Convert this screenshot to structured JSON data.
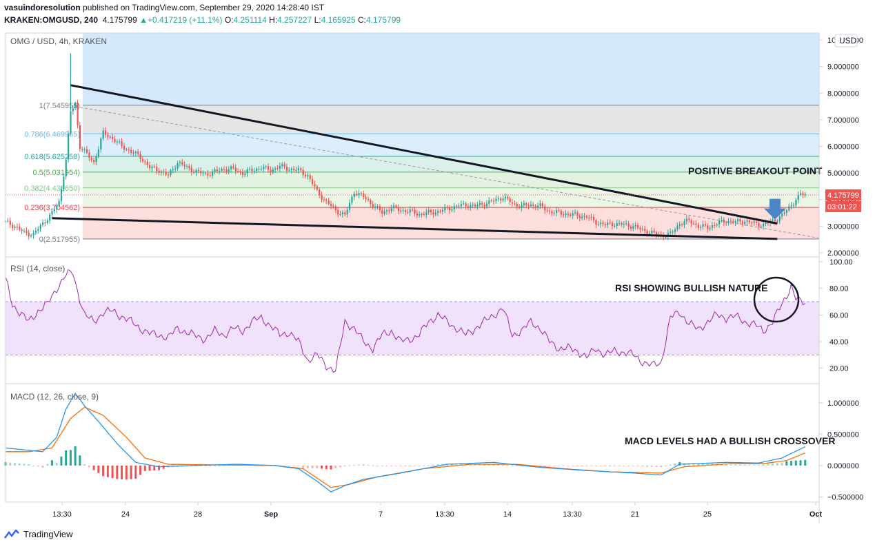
{
  "header": {
    "author": "vasuindoresolution",
    "published_text": "published on TradingView.com, September 29, 2020 14:28:40 IST",
    "symbol": "KRAKEN:OMGUSD, 240",
    "last": "4.175799",
    "change": "+0.417219 (+11.1%)",
    "open_label": "O:",
    "open": "4.251114",
    "high_label": "H:",
    "high": "4.257227",
    "low_label": "L:",
    "low": "4.165925",
    "close_label": "C:",
    "close": "4.175799"
  },
  "main_pane": {
    "legend": "OMG / USD, 4h, KRAKEN",
    "currency_button": "USD",
    "price_label": "4.175799",
    "countdown_label": "03:01:22",
    "annotation": "POSITIVE BREAKOUT POINT",
    "fib_levels": [
      {
        "label": "1(7.545955)",
        "value": 7.545955,
        "color": "#787b86",
        "fill": "#e0e0e0"
      },
      {
        "label": "0.786(6.469965)",
        "value": 6.469965,
        "color": "#64b5f6",
        "fill": "#d6eafc"
      },
      {
        "label": "0.618(5.625258)",
        "value": 5.625258,
        "color": "#26a69a",
        "fill": "#d4eee6"
      },
      {
        "label": "0.5(5.031954)",
        "value": 5.031954,
        "color": "#4caf50",
        "fill": "#dff0dc"
      },
      {
        "label": "0.382(4.438650)",
        "value": 4.43865,
        "color": "#81c784",
        "fill": "#e6f3e1"
      },
      {
        "label": "0.236(3.704562)",
        "value": 3.704562,
        "color": "#f23645",
        "fill": "#fbd9d7"
      },
      {
        "label": "0(2.517955)",
        "value": 2.517955,
        "color": "#787b86",
        "fill": null
      }
    ],
    "y_ticks": [
      "10.000000",
      "9.000000",
      "8.000000",
      "7.000000",
      "6.000000",
      "5.000000",
      "4.000000",
      "3.000000",
      "2.000000"
    ]
  },
  "rsi_pane": {
    "legend": "RSI (14, close)",
    "annotation": "RSI SHOWING BULLISH NATURE",
    "y_ticks": [
      "100.00",
      "80.00",
      "60.00",
      "40.00",
      "20.00"
    ]
  },
  "macd_pane": {
    "legend": "MACD (12, 26, close, 9)",
    "annotation": "MACD LEVELS HAD A BULLISH CROSSOVER",
    "y_ticks": [
      "1.000000",
      "0.500000",
      "0.000000",
      "−0.500000"
    ]
  },
  "x_axis": {
    "labels": [
      "13:30",
      "24",
      "28",
      "Sep",
      "7",
      "13:30",
      "14",
      "13:30",
      "21",
      "25",
      "Oct"
    ]
  },
  "footer": {
    "brand": "TradingView"
  },
  "colors": {
    "up": "#26a69a",
    "down": "#ef5350",
    "rsi": "#9c27b0",
    "macd": "#2196f3",
    "signal": "#ff6d00",
    "trendline": "#131722"
  },
  "chart_data": [
    {
      "type": "candlestick",
      "title": "OMG / USD, 4h, KRAKEN",
      "ylabel": "USD",
      "ylim": [
        2.0,
        10.0
      ],
      "x_labels": [
        "13:30",
        "24",
        "28",
        "Sep",
        "7",
        "13:30",
        "14",
        "13:30",
        "21",
        "25",
        "Oct"
      ],
      "close_path": [
        [
          0,
          3.15
        ],
        [
          4,
          3.0
        ],
        [
          8,
          2.75
        ],
        [
          12,
          2.7
        ],
        [
          16,
          3.1
        ],
        [
          20,
          3.5
        ],
        [
          23,
          3.9
        ],
        [
          26,
          5.5
        ],
        [
          28,
          7.3
        ],
        [
          30,
          7.6
        ],
        [
          32,
          6.0
        ],
        [
          35,
          5.7
        ],
        [
          38,
          5.4
        ],
        [
          42,
          6.5
        ],
        [
          46,
          6.3
        ],
        [
          50,
          6.0
        ],
        [
          54,
          5.8
        ],
        [
          58,
          5.6
        ],
        [
          62,
          5.2
        ],
        [
          66,
          5.1
        ],
        [
          70,
          4.9
        ],
        [
          74,
          5.4
        ],
        [
          78,
          5.2
        ],
        [
          82,
          5.05
        ],
        [
          86,
          4.95
        ],
        [
          90,
          5.05
        ],
        [
          94,
          5.15
        ],
        [
          98,
          5.15
        ],
        [
          102,
          5.0
        ],
        [
          106,
          5.1
        ],
        [
          110,
          5.2
        ],
        [
          114,
          5.1
        ],
        [
          118,
          5.25
        ],
        [
          122,
          5.15
        ],
        [
          126,
          5.1
        ],
        [
          130,
          4.9
        ],
        [
          134,
          4.3
        ],
        [
          138,
          3.9
        ],
        [
          142,
          3.6
        ],
        [
          146,
          3.4
        ],
        [
          150,
          4.3
        ],
        [
          154,
          4.1
        ],
        [
          158,
          3.8
        ],
        [
          162,
          3.5
        ],
        [
          166,
          3.7
        ],
        [
          170,
          3.6
        ],
        [
          174,
          3.55
        ],
        [
          178,
          3.45
        ],
        [
          182,
          3.5
        ],
        [
          186,
          3.55
        ],
        [
          190,
          3.65
        ],
        [
          194,
          3.75
        ],
        [
          198,
          3.8
        ],
        [
          202,
          3.75
        ],
        [
          206,
          3.85
        ],
        [
          210,
          3.95
        ],
        [
          214,
          4.1
        ],
        [
          218,
          3.85
        ],
        [
          222,
          3.75
        ],
        [
          226,
          3.8
        ],
        [
          230,
          3.75
        ],
        [
          234,
          3.55
        ],
        [
          238,
          3.5
        ],
        [
          242,
          3.45
        ],
        [
          246,
          3.4
        ],
        [
          250,
          3.35
        ],
        [
          254,
          3.15
        ],
        [
          258,
          3.05
        ],
        [
          262,
          3.1
        ],
        [
          266,
          3.05
        ],
        [
          270,
          3.0
        ],
        [
          274,
          2.85
        ],
        [
          278,
          2.75
        ],
        [
          282,
          2.65
        ],
        [
          286,
          2.7
        ],
        [
          290,
          3.1
        ],
        [
          294,
          3.2
        ],
        [
          298,
          3.0
        ],
        [
          302,
          2.95
        ],
        [
          306,
          3.1
        ],
        [
          310,
          3.2
        ],
        [
          314,
          3.15
        ],
        [
          318,
          3.2
        ],
        [
          322,
          3.1
        ],
        [
          326,
          3.05
        ],
        [
          330,
          3.2
        ],
        [
          334,
          3.4
        ],
        [
          338,
          3.8
        ],
        [
          340,
          4.0
        ],
        [
          342,
          4.2
        ],
        [
          344,
          4.18
        ]
      ],
      "trendlines": [
        {
          "name": "upper",
          "from": [
            28,
            8.3
          ],
          "to": [
            332,
            3.1
          ]
        },
        {
          "name": "lower",
          "from": [
            20,
            3.3
          ],
          "to": [
            332,
            2.52
          ]
        }
      ],
      "last_price": 4.175799
    },
    {
      "type": "line",
      "title": "RSI (14, close)",
      "ylim": [
        10,
        100
      ],
      "bands": [
        30,
        70
      ],
      "series": [
        {
          "name": "RSI (14, close)",
          "values": [
            [
              0,
              87
            ],
            [
              3,
              68
            ],
            [
              6,
              62
            ],
            [
              10,
              55
            ],
            [
              14,
              63
            ],
            [
              18,
              68
            ],
            [
              22,
              80
            ],
            [
              26,
              90
            ],
            [
              29,
              92
            ],
            [
              31,
              78
            ],
            [
              34,
              60
            ],
            [
              38,
              55
            ],
            [
              42,
              62
            ],
            [
              46,
              63
            ],
            [
              50,
              59
            ],
            [
              54,
              55
            ],
            [
              58,
              50
            ],
            [
              62,
              46
            ],
            [
              66,
              45
            ],
            [
              70,
              43
            ],
            [
              74,
              50
            ],
            [
              78,
              47
            ],
            [
              82,
              44
            ],
            [
              86,
              42
            ],
            [
              90,
              48
            ],
            [
              94,
              45
            ],
            [
              98,
              50
            ],
            [
              102,
              48
            ],
            [
              106,
              55
            ],
            [
              110,
              58
            ],
            [
              114,
              52
            ],
            [
              118,
              45
            ],
            [
              122,
              47
            ],
            [
              126,
              40
            ],
            [
              130,
              26
            ],
            [
              134,
              30
            ],
            [
              138,
              22
            ],
            [
              142,
              18
            ],
            [
              146,
              55
            ],
            [
              150,
              50
            ],
            [
              154,
              40
            ],
            [
              158,
              35
            ],
            [
              162,
              45
            ],
            [
              166,
              48
            ],
            [
              170,
              40
            ],
            [
              174,
              42
            ],
            [
              178,
              45
            ],
            [
              182,
              55
            ],
            [
              186,
              60
            ],
            [
              190,
              55
            ],
            [
              194,
              50
            ],
            [
              198,
              45
            ],
            [
              202,
              50
            ],
            [
              206,
              55
            ],
            [
              210,
              60
            ],
            [
              214,
              65
            ],
            [
              218,
              45
            ],
            [
              222,
              48
            ],
            [
              226,
              55
            ],
            [
              230,
              50
            ],
            [
              234,
              40
            ],
            [
              238,
              35
            ],
            [
              242,
              35
            ],
            [
              246,
              33
            ],
            [
              250,
              28
            ],
            [
              254,
              35
            ],
            [
              258,
              30
            ],
            [
              262,
              33
            ],
            [
              266,
              32
            ],
            [
              270,
              30
            ],
            [
              274,
              25
            ],
            [
              278,
              22
            ],
            [
              282,
              24
            ],
            [
              286,
              58
            ],
            [
              290,
              62
            ],
            [
              294,
              54
            ],
            [
              298,
              49
            ],
            [
              302,
              55
            ],
            [
              306,
              60
            ],
            [
              310,
              58
            ],
            [
              314,
              59
            ],
            [
              318,
              55
            ],
            [
              322,
              53
            ],
            [
              326,
              48
            ],
            [
              330,
              55
            ],
            [
              334,
              68
            ],
            [
              338,
              82
            ],
            [
              340,
              72
            ],
            [
              342,
              70
            ],
            [
              344,
              69
            ]
          ]
        }
      ]
    },
    {
      "type": "line",
      "title": "MACD (12, 26, close, 9)",
      "ylim": [
        -0.55,
        1.25
      ],
      "series": [
        {
          "name": "MACD",
          "values": [
            [
              0,
              0.28
            ],
            [
              8,
              0.25
            ],
            [
              16,
              0.22
            ],
            [
              22,
              0.45
            ],
            [
              26,
              0.9
            ],
            [
              30,
              1.15
            ],
            [
              34,
              0.95
            ],
            [
              40,
              0.7
            ],
            [
              48,
              0.35
            ],
            [
              56,
              0.05
            ],
            [
              66,
              -0.02
            ],
            [
              80,
              0.0
            ],
            [
              100,
              0.02
            ],
            [
              116,
              0.0
            ],
            [
              126,
              -0.05
            ],
            [
              134,
              -0.25
            ],
            [
              140,
              -0.42
            ],
            [
              146,
              -0.32
            ],
            [
              154,
              -0.22
            ],
            [
              170,
              -0.12
            ],
            [
              190,
              0.02
            ],
            [
              210,
              0.05
            ],
            [
              230,
              -0.03
            ],
            [
              250,
              -0.08
            ],
            [
              270,
              -0.12
            ],
            [
              282,
              -0.15
            ],
            [
              290,
              0.02
            ],
            [
              310,
              0.05
            ],
            [
              324,
              0.04
            ],
            [
              334,
              0.12
            ],
            [
              344,
              0.3
            ]
          ]
        },
        {
          "name": "Signal",
          "values": [
            [
              0,
              0.22
            ],
            [
              10,
              0.22
            ],
            [
              20,
              0.28
            ],
            [
              28,
              0.75
            ],
            [
              34,
              0.93
            ],
            [
              42,
              0.8
            ],
            [
              52,
              0.45
            ],
            [
              60,
              0.12
            ],
            [
              70,
              0.02
            ],
            [
              90,
              0.01
            ],
            [
              116,
              0.0
            ],
            [
              128,
              -0.05
            ],
            [
              140,
              -0.35
            ],
            [
              148,
              -0.3
            ],
            [
              160,
              -0.18
            ],
            [
              180,
              -0.05
            ],
            [
              200,
              0.02
            ],
            [
              220,
              0.02
            ],
            [
              240,
              -0.05
            ],
            [
              260,
              -0.1
            ],
            [
              282,
              -0.12
            ],
            [
              292,
              -0.02
            ],
            [
              312,
              0.03
            ],
            [
              326,
              0.03
            ],
            [
              336,
              0.08
            ],
            [
              344,
              0.2
            ]
          ]
        }
      ],
      "histogram_range": [
        -0.2,
        0.42
      ]
    }
  ]
}
